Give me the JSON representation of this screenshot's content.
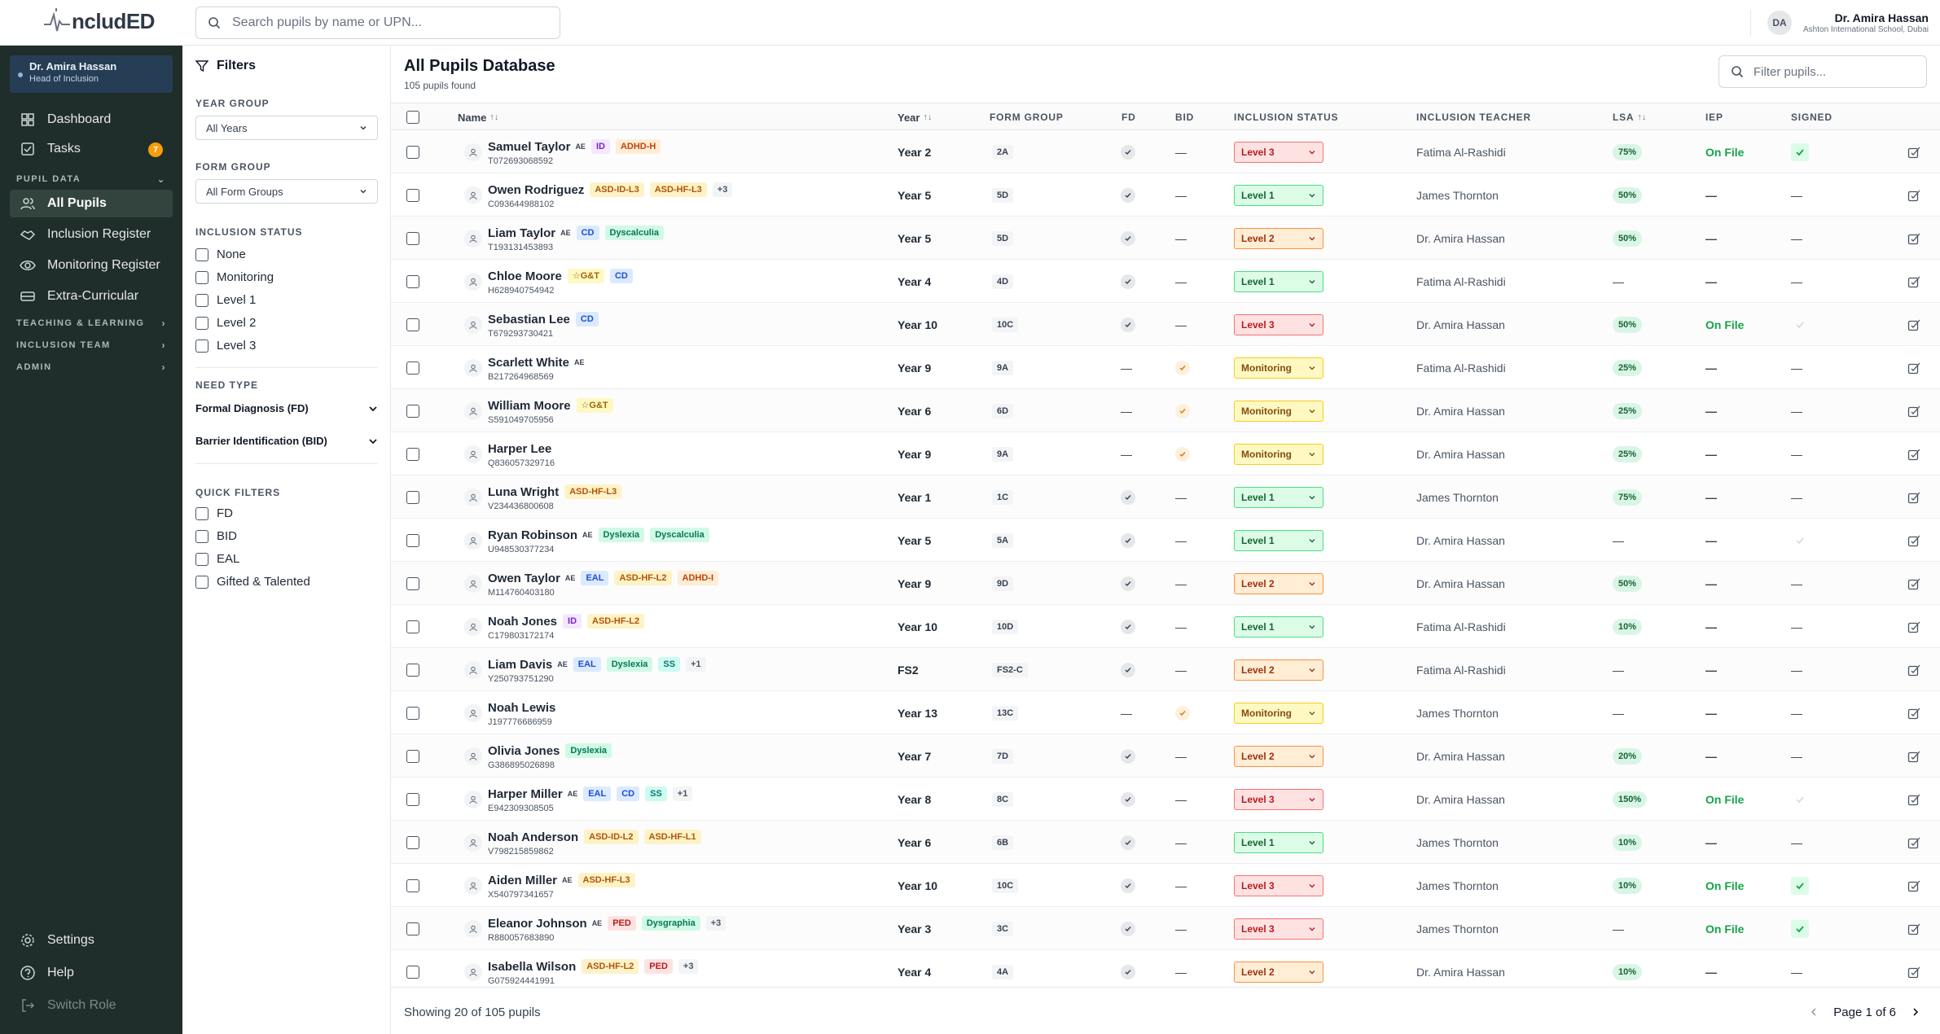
{
  "app": {
    "logo_text": "ncludED"
  },
  "topbar": {
    "search_placeholder": "Search pupils by name or UPN...",
    "user": {
      "initials": "DA",
      "name": "Dr. Amira Hassan",
      "school": "Ashton International School, Dubai"
    }
  },
  "sidebar": {
    "role": {
      "name": "Dr. Amira Hassan",
      "title": "Head of Inclusion"
    },
    "items": {
      "dashboard": "Dashboard",
      "tasks": "Tasks",
      "tasks_badge": "7",
      "pupil_data": "PUPIL DATA",
      "all_pupils": "All Pupils",
      "inclusion_register": "Inclusion Register",
      "monitoring_register": "Monitoring Register",
      "extra_curricular": "Extra-Curricular",
      "teaching_learning": "TEACHING & LEARNING",
      "inclusion_team": "INCLUSION TEAM",
      "admin": "ADMIN",
      "settings": "Settings",
      "help": "Help",
      "switch_role": "Switch Role"
    }
  },
  "filters": {
    "title": "Filters",
    "year_group_label": "YEAR GROUP",
    "year_group_value": "All Years",
    "form_group_label": "FORM GROUP",
    "form_group_value": "All Form Groups",
    "inclusion_status_label": "INCLUSION STATUS",
    "inclusion_status_options": [
      "None",
      "Monitoring",
      "Level 1",
      "Level 2",
      "Level 3"
    ],
    "need_type_label": "NEED TYPE",
    "need_types": [
      "Formal Diagnosis (FD)",
      "Barrier Identification (BID)"
    ],
    "quick_filters_label": "QUICK FILTERS",
    "quick_filters": [
      "FD",
      "BID",
      "EAL",
      "Gifted & Talented"
    ]
  },
  "main": {
    "title": "All Pupils Database",
    "count": "105 pupils found",
    "filter_placeholder": "Filter pupils...",
    "columns": {
      "name": "Name",
      "year": "Year",
      "form": "FORM GROUP",
      "fd": "FD",
      "bid": "BID",
      "status": "INCLUSION STATUS",
      "teacher": "INCLUSION TEACHER",
      "lsa": "LSA",
      "iep": "IEP",
      "signed": "SIGNED",
      "sort_icon": "↑↓"
    },
    "footer": {
      "showing": "Showing 20 of 105 pupils",
      "page": "Page 1 of 6"
    }
  },
  "colors": {
    "level3": "#dc2626",
    "level2": "#c2410c",
    "level1": "#16a34a",
    "monitoring": "#a16207",
    "sidebar_bg": "#1f2d2b",
    "accent_green": "#16a34a"
  },
  "pupils": [
    {
      "name": "Samuel Taylor",
      "ae": true,
      "upn": "T072693068592",
      "tags": [
        "ID",
        "ADHD-H"
      ],
      "more": "",
      "year": "Year 2",
      "form": "2A",
      "fd": "yes",
      "bid": "no",
      "status": "Level 3",
      "teacher": "Fatima Al-Rashidi",
      "lsa": "75%",
      "iep": "On File",
      "signed": "yes"
    },
    {
      "name": "Owen Rodriguez",
      "ae": false,
      "upn": "C093644988102",
      "tags": [
        "ASD-ID-L3",
        "ASD-HF-L3"
      ],
      "more": "+3",
      "year": "Year 5",
      "form": "5D",
      "fd": "yes",
      "bid": "no",
      "status": "Level 1",
      "teacher": "James Thornton",
      "lsa": "50%",
      "iep": "",
      "signed": "no"
    },
    {
      "name": "Liam Taylor",
      "ae": true,
      "upn": "T193131453893",
      "tags": [
        "CD",
        "Dyscalculia"
      ],
      "more": "",
      "year": "Year 5",
      "form": "5D",
      "fd": "yes",
      "bid": "no",
      "status": "Level 2",
      "teacher": "Dr. Amira Hassan",
      "lsa": "50%",
      "iep": "",
      "signed": "no"
    },
    {
      "name": "Chloe Moore",
      "ae": false,
      "upn": "H628940754942",
      "tags": [
        "☆G&T",
        "CD"
      ],
      "more": "",
      "year": "Year 4",
      "form": "4D",
      "fd": "yes",
      "bid": "no",
      "status": "Level 1",
      "teacher": "Fatima Al-Rashidi",
      "lsa": "",
      "iep": "",
      "signed": "no"
    },
    {
      "name": "Sebastian Lee",
      "ae": false,
      "upn": "T679293730421",
      "tags": [
        "CD"
      ],
      "more": "",
      "year": "Year 10",
      "form": "10C",
      "fd": "yes",
      "bid": "no",
      "status": "Level 3",
      "teacher": "Dr. Amira Hassan",
      "lsa": "50%",
      "iep": "On File",
      "signed": "faint"
    },
    {
      "name": "Scarlett White",
      "ae": true,
      "upn": "B217264968569",
      "tags": [],
      "more": "",
      "year": "Year 9",
      "form": "9A",
      "fd": "no",
      "bid": "warn",
      "status": "Monitoring",
      "teacher": "Fatima Al-Rashidi",
      "lsa": "25%",
      "iep": "",
      "signed": "no"
    },
    {
      "name": "William Moore",
      "ae": false,
      "upn": "S591049705956",
      "tags": [
        "☆G&T"
      ],
      "more": "",
      "year": "Year 6",
      "form": "6D",
      "fd": "no",
      "bid": "warn",
      "status": "Monitoring",
      "teacher": "Dr. Amira Hassan",
      "lsa": "25%",
      "iep": "",
      "signed": "no"
    },
    {
      "name": "Harper Lee",
      "ae": false,
      "upn": "Q836057329716",
      "tags": [],
      "more": "",
      "year": "Year 9",
      "form": "9A",
      "fd": "no",
      "bid": "warn",
      "status": "Monitoring",
      "teacher": "Dr. Amira Hassan",
      "lsa": "25%",
      "iep": "",
      "signed": "no"
    },
    {
      "name": "Luna Wright",
      "ae": false,
      "upn": "V234436800608",
      "tags": [
        "ASD-HF-L3"
      ],
      "more": "",
      "year": "Year 1",
      "form": "1C",
      "fd": "yes",
      "bid": "no",
      "status": "Level 1",
      "teacher": "James Thornton",
      "lsa": "75%",
      "iep": "",
      "signed": "no"
    },
    {
      "name": "Ryan Robinson",
      "ae": true,
      "upn": "U948530377234",
      "tags": [
        "Dyslexia",
        "Dyscalculia"
      ],
      "more": "",
      "year": "Year 5",
      "form": "5A",
      "fd": "yes",
      "bid": "no",
      "status": "Level 1",
      "teacher": "Dr. Amira Hassan",
      "lsa": "",
      "iep": "",
      "signed": "faint"
    },
    {
      "name": "Owen Taylor",
      "ae": true,
      "upn": "M114760403180",
      "tags": [
        "EAL",
        "ASD-HF-L2",
        "ADHD-I"
      ],
      "more": "",
      "year": "Year 9",
      "form": "9D",
      "fd": "yes",
      "bid": "no",
      "status": "Level 2",
      "teacher": "Dr. Amira Hassan",
      "lsa": "50%",
      "iep": "",
      "signed": "no"
    },
    {
      "name": "Noah Jones",
      "ae": false,
      "upn": "C179803172174",
      "tags": [
        "ID",
        "ASD-HF-L2"
      ],
      "more": "",
      "year": "Year 10",
      "form": "10D",
      "fd": "yes",
      "bid": "no",
      "status": "Level 1",
      "teacher": "Fatima Al-Rashidi",
      "lsa": "10%",
      "iep": "",
      "signed": "no"
    },
    {
      "name": "Liam Davis",
      "ae": true,
      "upn": "Y250793751290",
      "tags": [
        "EAL",
        "Dyslexia",
        "SS"
      ],
      "more": "+1",
      "year": "FS2",
      "form": "FS2-C",
      "fd": "yes",
      "bid": "no",
      "status": "Level 2",
      "teacher": "Fatima Al-Rashidi",
      "lsa": "",
      "iep": "",
      "signed": "no"
    },
    {
      "name": "Noah Lewis",
      "ae": false,
      "upn": "J197776686959",
      "tags": [],
      "more": "",
      "year": "Year 13",
      "form": "13C",
      "fd": "no",
      "bid": "warn",
      "status": "Monitoring",
      "teacher": "James Thornton",
      "lsa": "",
      "iep": "",
      "signed": "no"
    },
    {
      "name": "Olivia Jones",
      "ae": false,
      "upn": "G386895026898",
      "tags": [
        "Dyslexia"
      ],
      "more": "",
      "year": "Year 7",
      "form": "7D",
      "fd": "yes",
      "bid": "no",
      "status": "Level 2",
      "teacher": "Dr. Amira Hassan",
      "lsa": "20%",
      "iep": "",
      "signed": "no"
    },
    {
      "name": "Harper Miller",
      "ae": true,
      "upn": "E942309308505",
      "tags": [
        "EAL",
        "CD",
        "SS"
      ],
      "more": "+1",
      "year": "Year 8",
      "form": "8C",
      "fd": "yes",
      "bid": "no",
      "status": "Level 3",
      "teacher": "Dr. Amira Hassan",
      "lsa": "150%",
      "iep": "On File",
      "signed": "faint"
    },
    {
      "name": "Noah Anderson",
      "ae": false,
      "upn": "V798215859862",
      "tags": [
        "ASD-ID-L2",
        "ASD-HF-L1"
      ],
      "more": "",
      "year": "Year 6",
      "form": "6B",
      "fd": "yes",
      "bid": "no",
      "status": "Level 1",
      "teacher": "James Thornton",
      "lsa": "10%",
      "iep": "",
      "signed": "no"
    },
    {
      "name": "Aiden Miller",
      "ae": true,
      "upn": "X540797341657",
      "tags": [
        "ASD-HF-L3"
      ],
      "more": "",
      "year": "Year 10",
      "form": "10C",
      "fd": "yes",
      "bid": "no",
      "status": "Level 3",
      "teacher": "James Thornton",
      "lsa": "10%",
      "iep": "On File",
      "signed": "yes"
    },
    {
      "name": "Eleanor Johnson",
      "ae": true,
      "upn": "R880057683890",
      "tags": [
        "PED",
        "Dysgraphia"
      ],
      "more": "+3",
      "year": "Year 3",
      "form": "3C",
      "fd": "yes",
      "bid": "no",
      "status": "Level 3",
      "teacher": "James Thornton",
      "lsa": "",
      "iep": "On File",
      "signed": "yes"
    },
    {
      "name": "Isabella Wilson",
      "ae": false,
      "upn": "G075924441991",
      "tags": [
        "ASD-HF-L2",
        "PED"
      ],
      "more": "+3",
      "year": "Year 4",
      "form": "4A",
      "fd": "yes",
      "bid": "no",
      "status": "Level 2",
      "teacher": "Dr. Amira Hassan",
      "lsa": "10%",
      "iep": "",
      "signed": "no"
    }
  ]
}
